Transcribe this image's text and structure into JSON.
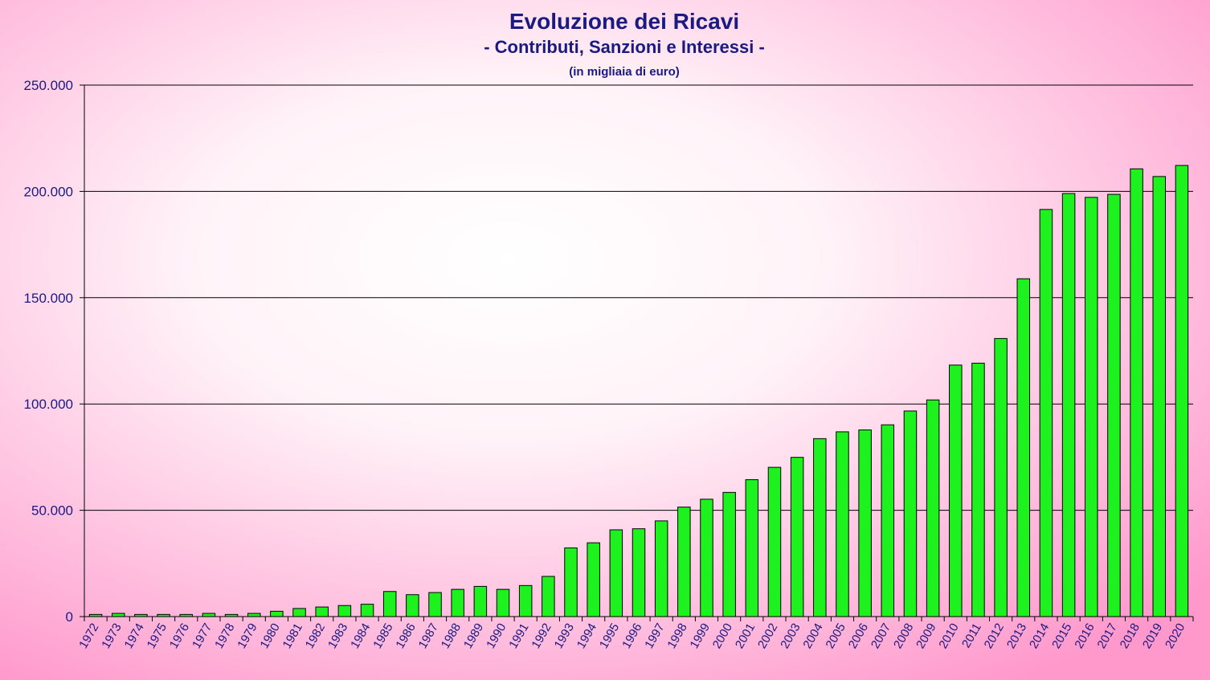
{
  "colors": {
    "title": "#1a1a80",
    "bar_fill": "#1ef21e",
    "bar_stroke": "#000000",
    "grid": "#000000",
    "background_edge": "#ff99cc",
    "background_center": "#ffffff"
  },
  "chart_data": {
    "type": "bar",
    "title": "Evoluzione dei Ricavi",
    "subtitle": "- Contributi, Sanzioni e Interessi -",
    "subtitle2": "(in migliaia di euro)",
    "xlabel": "",
    "ylabel": "",
    "ylim": [
      0,
      250000
    ],
    "yticks": [
      0,
      50000,
      100000,
      150000,
      200000,
      250000
    ],
    "ytick_labels": [
      "0",
      "50.000",
      "100.000",
      "150.000",
      "200.000",
      "250.000"
    ],
    "grid": true,
    "legend": "none",
    "categories": [
      "1972",
      "1973",
      "1974",
      "1975",
      "1976",
      "1977",
      "1978",
      "1979",
      "1980",
      "1981",
      "1982",
      "1983",
      "1984",
      "1985",
      "1986",
      "1987",
      "1988",
      "1989",
      "1990",
      "1991",
      "1992",
      "1993",
      "1994",
      "1995",
      "1996",
      "1997",
      "1998",
      "1999",
      "2000",
      "2001",
      "2002",
      "2003",
      "2004",
      "2005",
      "2006",
      "2007",
      "2008",
      "2009",
      "2010",
      "2011",
      "2012",
      "2013",
      "2014",
      "2015",
      "2016",
      "2017",
      "2018",
      "2019",
      "2020"
    ],
    "values": [
      1000,
      1500,
      1000,
      1000,
      1000,
      1500,
      1000,
      1500,
      2500,
      3800,
      4500,
      5200,
      5800,
      11800,
      10300,
      11300,
      12800,
      14200,
      12800,
      14600,
      18900,
      32300,
      34700,
      40800,
      41300,
      45000,
      51500,
      55200,
      58400,
      64400,
      70200,
      74900,
      83700,
      86900,
      87800,
      90200,
      96700,
      101900,
      118300,
      119200,
      130800,
      158900,
      191500,
      199000,
      197200,
      198600,
      210600,
      207000,
      212200
    ]
  }
}
